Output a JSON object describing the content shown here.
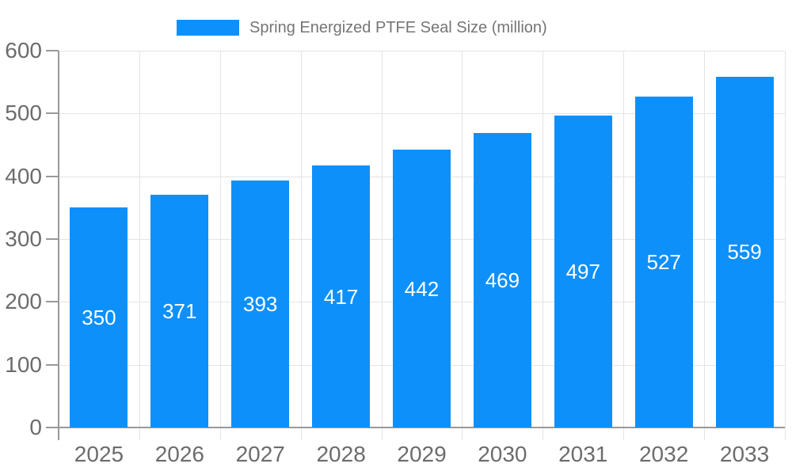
{
  "legend": {
    "label": "Spring Energized PTFE Seal Size (million)"
  },
  "chart_data": {
    "type": "bar",
    "title": "Spring Energized PTFE Seal Size (million)",
    "categories": [
      "2025",
      "2026",
      "2027",
      "2028",
      "2029",
      "2030",
      "2031",
      "2032",
      "2033"
    ],
    "values": [
      350,
      371,
      393,
      417,
      442,
      469,
      497,
      527,
      559
    ],
    "series": [
      {
        "name": "Spring Energized PTFE Seal Size (million)",
        "values": [
          350,
          371,
          393,
          417,
          442,
          469,
          497,
          527,
          559
        ]
      }
    ],
    "xlabel": "",
    "ylabel": "",
    "ylim": [
      0,
      600
    ],
    "ytick_step": 100,
    "yticks": [
      0,
      100,
      200,
      300,
      400,
      500,
      600
    ],
    "grid": true,
    "legend_position": "top-center",
    "bar_label_position": "inside-middle"
  },
  "colors": {
    "bar": "#0E90FA",
    "axis": "#999999",
    "grid": "#E4E4E4",
    "tick_text": "#6C6C6C",
    "legend_text": "#757575",
    "bar_label": "#FFFFFF",
    "background": "#FFFFFF"
  }
}
